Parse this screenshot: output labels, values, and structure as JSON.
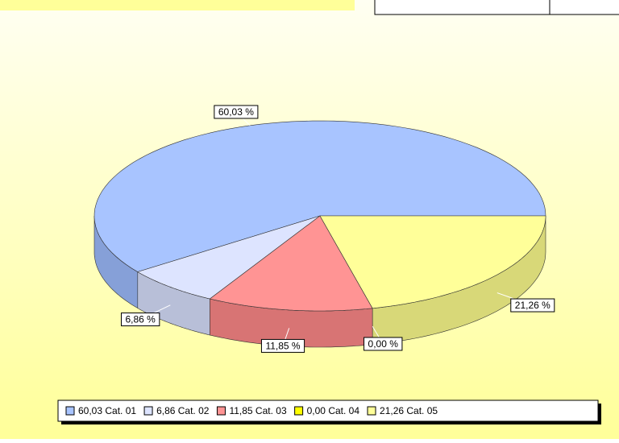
{
  "chart_data": {
    "type": "pie3d",
    "categories": [
      "60,03 Cat. 01",
      "6,86 Cat. 02",
      "11,85 Cat. 03",
      "0,00 Cat. 04",
      "21,26 Cat. 05"
    ],
    "values": [
      60.03,
      6.86,
      11.85,
      0.0,
      21.26
    ],
    "value_labels": [
      "60,03 %",
      "6,86 %",
      "11,85 %",
      "0,00 %",
      "21,26 %"
    ],
    "colors": [
      "#a8c4ff",
      "#dde4ff",
      "#ff9494",
      "#ffff00",
      "#ffff99"
    ],
    "side_colors": [
      "#86a0d8",
      "#b8bfd8",
      "#d87474",
      "#d8d800",
      "#d8d878"
    ],
    "legend": "bottom"
  }
}
